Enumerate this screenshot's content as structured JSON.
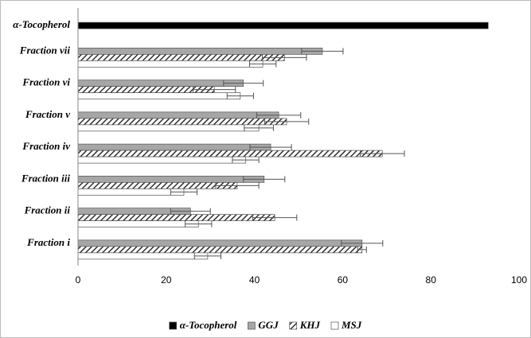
{
  "chart_data": {
    "type": "hbar",
    "categories": [
      "α-Tocopherol",
      "Fraction vii",
      "Fraction vi",
      "Fraction v",
      "Fraction iv",
      "Fraction iii",
      "Fraction ii",
      "Fraction i"
    ],
    "series": [
      {
        "name": "α-Tocopherol",
        "color": "#000000",
        "values": [
          93,
          null,
          null,
          null,
          null,
          null,
          null,
          null
        ],
        "errors": [
          null,
          null,
          null,
          null,
          null,
          null,
          null,
          null
        ]
      },
      {
        "name": "GGJ",
        "color": "#a6a6a6",
        "values": [
          null,
          55.4,
          37.5,
          45.5,
          43.7,
          42.2,
          25.5,
          64.4
        ],
        "errors": [
          null,
          4.7,
          4.5,
          5,
          4.7,
          4.7,
          4.5,
          4.7
        ]
      },
      {
        "name": "KHJ",
        "color": "#404040",
        "pattern": "hatch",
        "values": [
          null,
          46.8,
          30.9,
          47.3,
          69,
          36.1,
          44.6,
          64.4
        ],
        "errors": [
          null,
          5,
          4.8,
          5,
          5,
          4.9,
          5,
          1
        ]
      },
      {
        "name": "MSJ",
        "color": "#ffffff",
        "values": [
          null,
          41.9,
          36.8,
          41,
          38,
          24,
          27.3,
          29.4
        ],
        "errors": [
          null,
          3,
          3,
          3.3,
          3,
          3,
          3,
          3
        ]
      }
    ],
    "xlim": [
      0,
      100
    ],
    "xticks": [
      0,
      20,
      40,
      60,
      80,
      100
    ],
    "grid": false,
    "legend": "bottom"
  }
}
